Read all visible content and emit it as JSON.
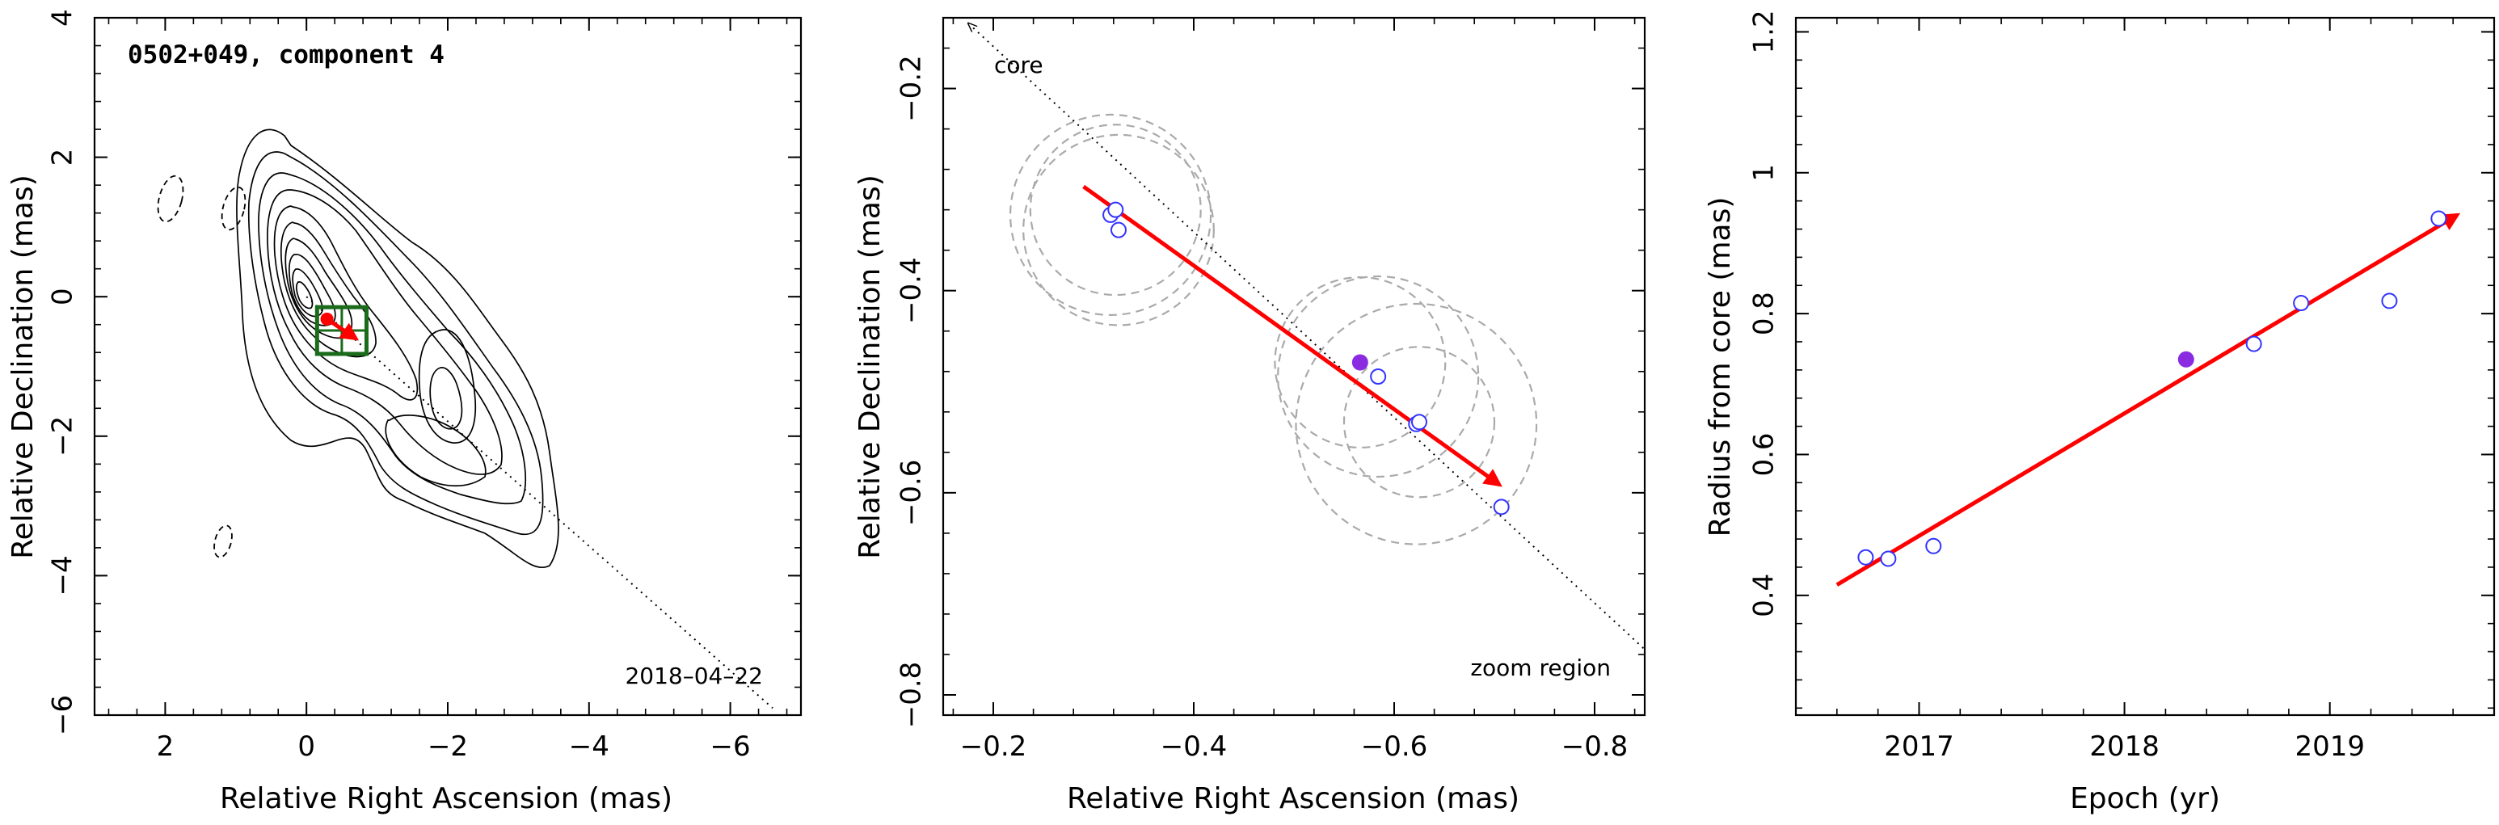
{
  "colors": {
    "contour": "#000000",
    "trajectory": "#ff0000",
    "epoch_marker": "#3333ff",
    "highlight_marker": "#8a2be2",
    "zoom_box": "#1a6b1a",
    "beam_circle": "#aaaaaa"
  },
  "chart_data": [
    {
      "type": "contour",
      "title": "0502+049, component 4",
      "date_label": "2018–04–22",
      "xlabel": "Relative Right Ascension (mas)",
      "ylabel": "Relative Declination (mas)",
      "xlim": [
        3,
        -7
      ],
      "ylim": [
        -6,
        4
      ],
      "xticks": [
        2,
        0,
        -2,
        -4,
        -6
      ],
      "xtick_labels": [
        "2",
        "0",
        "−2",
        "−4",
        "−6"
      ],
      "yticks": [
        -6,
        -4,
        -2,
        0,
        2,
        4
      ],
      "ytick_labels": [
        "−6",
        "−4",
        "−2",
        "0",
        "2",
        "4"
      ],
      "grid": false,
      "component_position": [
        -0.57,
        -0.48
      ],
      "trajectory": {
        "from": [
          -0.29,
          -0.32
        ],
        "to": [
          -0.7,
          -0.6
        ]
      },
      "zoom_region": {
        "x": [
          -0.15,
          -0.85
        ],
        "y": [
          -0.15,
          -0.82
        ]
      },
      "core_direction_line": {
        "from": [
          0,
          0
        ],
        "to": [
          -6.6,
          -5.9
        ]
      }
    },
    {
      "type": "scatter",
      "annotations": [
        "core",
        "zoom region"
      ],
      "xlabel": "Relative Right Ascension (mas)",
      "ylabel": "Relative Declination (mas)",
      "xlim": [
        -0.15,
        -0.85
      ],
      "ylim": [
        -0.82,
        -0.13
      ],
      "xticks": [
        -0.2,
        -0.4,
        -0.6,
        -0.8
      ],
      "xtick_labels": [
        "−0.2",
        "−0.4",
        "−0.6",
        "−0.8"
      ],
      "yticks": [
        -0.2,
        -0.4,
        -0.6,
        -0.8
      ],
      "ytick_labels": [
        "−0.2",
        "−0.4",
        "−0.6",
        "−0.8"
      ],
      "grid": false,
      "epochs": [
        {
          "x": -0.317,
          "y": -0.325
        },
        {
          "x": -0.322,
          "y": -0.32
        },
        {
          "x": -0.325,
          "y": -0.34
        },
        {
          "x": -0.584,
          "y": -0.485
        },
        {
          "x": -0.622,
          "y": -0.532
        },
        {
          "x": -0.625,
          "y": -0.53
        },
        {
          "x": -0.707,
          "y": -0.614
        }
      ],
      "highlighted_epoch": {
        "x": -0.566,
        "y": -0.471
      },
      "beam_sizes": [
        {
          "x": -0.317,
          "y": -0.325,
          "r": 0.1
        },
        {
          "x": -0.322,
          "y": -0.32,
          "r": 0.085
        },
        {
          "x": -0.325,
          "y": -0.34,
          "r": 0.095
        },
        {
          "x": -0.584,
          "y": -0.485,
          "r": 0.1
        },
        {
          "x": -0.622,
          "y": -0.532,
          "r": 0.12
        },
        {
          "x": -0.625,
          "y": -0.53,
          "r": 0.075
        },
        {
          "x": -0.566,
          "y": -0.471,
          "r": 0.085
        }
      ],
      "trajectory": {
        "from": [
          -0.29,
          -0.297
        ],
        "to": [
          -0.705,
          -0.592
        ]
      },
      "core_direction_line": {
        "from": [
          -0.18,
          -0.14
        ],
        "to": [
          -0.85,
          -0.755
        ]
      }
    },
    {
      "type": "scatter",
      "xlabel": "Epoch (yr)",
      "ylabel": "Radius from core (mas)",
      "xlim": [
        2016.4,
        2019.8
      ],
      "ylim": [
        0.23,
        1.22
      ],
      "xticks": [
        2017,
        2018,
        2019
      ],
      "xtick_labels": [
        "2017",
        "2018",
        "2019"
      ],
      "yticks": [
        0.4,
        0.6,
        0.8,
        1.0,
        1.2
      ],
      "ytick_labels": [
        "0.4",
        "0.6",
        "0.8",
        "1",
        "1.2"
      ],
      "grid": false,
      "epochs": [
        {
          "x": 2016.74,
          "y": 0.454
        },
        {
          "x": 2016.85,
          "y": 0.452
        },
        {
          "x": 2017.07,
          "y": 0.47
        },
        {
          "x": 2018.63,
          "y": 0.757
        },
        {
          "x": 2018.86,
          "y": 0.815
        },
        {
          "x": 2019.29,
          "y": 0.818
        },
        {
          "x": 2019.53,
          "y": 0.935
        }
      ],
      "highlighted_epoch": {
        "x": 2018.3,
        "y": 0.735
      },
      "fit": {
        "from": [
          2016.6,
          0.415
        ],
        "to": [
          2019.62,
          0.94
        ]
      }
    }
  ]
}
